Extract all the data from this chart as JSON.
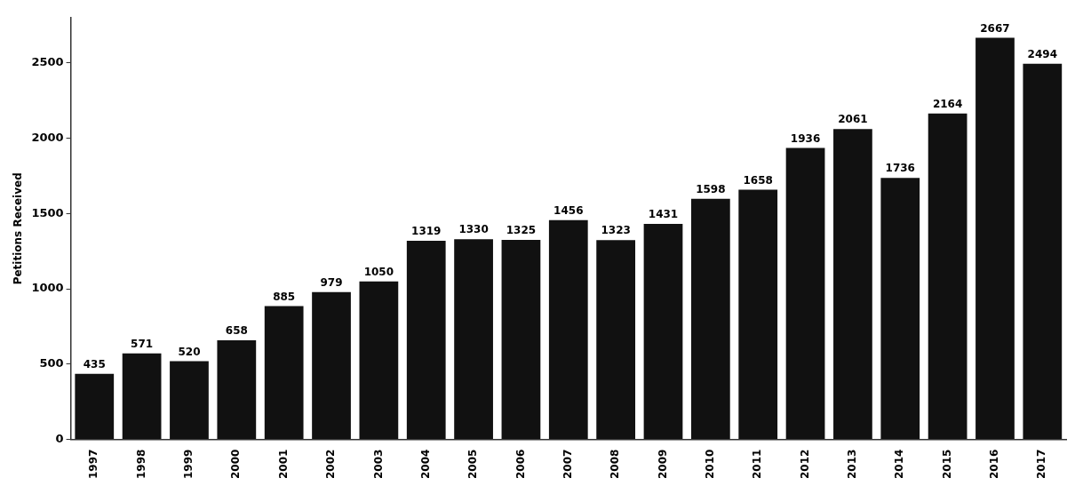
{
  "chart_data": {
    "type": "bar",
    "ylabel": "Petitions Received",
    "categories": [
      "1997",
      "1998",
      "1999",
      "2000",
      "2001",
      "2002",
      "2003",
      "2004",
      "2005",
      "2006",
      "2007",
      "2008",
      "2009",
      "2010",
      "2011",
      "2012",
      "2013",
      "2014",
      "2015",
      "2016",
      "2017"
    ],
    "values": [
      435,
      571,
      520,
      658,
      885,
      979,
      1050,
      1319,
      1330,
      1325,
      1456,
      1323,
      1431,
      1598,
      1658,
      1936,
      2061,
      1736,
      2164,
      2667,
      2494
    ],
    "color": "#111111",
    "ylim": [
      0,
      2800
    ],
    "yticks": [
      0,
      500,
      1000,
      1500,
      2000,
      2500
    ],
    "grid": false,
    "legend": false,
    "data_labels": true
  }
}
